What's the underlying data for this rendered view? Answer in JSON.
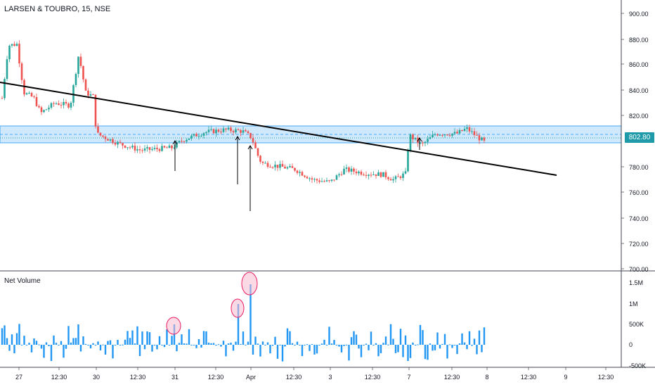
{
  "header": {
    "symbol_title": "LARSEN & TOUBRO, 15, NSE"
  },
  "indicator": {
    "title": "Net Volume"
  },
  "last_price": "802.80",
  "colors": {
    "up": "#26a69a",
    "down": "#ef5350",
    "volume": "#2196f3",
    "zone_fill": "#bbdefb",
    "zone_border": "#2196f3",
    "trendline": "#000000",
    "last_price_line": "#26a69a",
    "highlight_circle": "#e91e63"
  },
  "chart_data": {
    "type": "candlestick",
    "price_axis": {
      "ticks": [
        "900.00",
        "880.00",
        "860.00",
        "840.00",
        "820.00",
        "780.00",
        "760.00",
        "740.00",
        "720.00",
        "700.00"
      ]
    },
    "volume_axis": {
      "ticks": [
        "1.5M",
        "1M",
        "500K",
        "0",
        "-500K"
      ]
    },
    "time_axis": {
      "labels": [
        "27",
        "12:30",
        "30",
        "12:30",
        "31",
        "12:30",
        "Apr",
        "12:30",
        "3",
        "12:30",
        "7",
        "12:30",
        "8",
        "12:30",
        "9",
        "12:30"
      ]
    },
    "support_zone": {
      "low": 798,
      "high": 811,
      "mid": 805
    },
    "trendline": {
      "from_price": 846,
      "to_price": 773
    },
    "annotation_arrows": 4,
    "highlighted_volume_spikes": 3
  }
}
